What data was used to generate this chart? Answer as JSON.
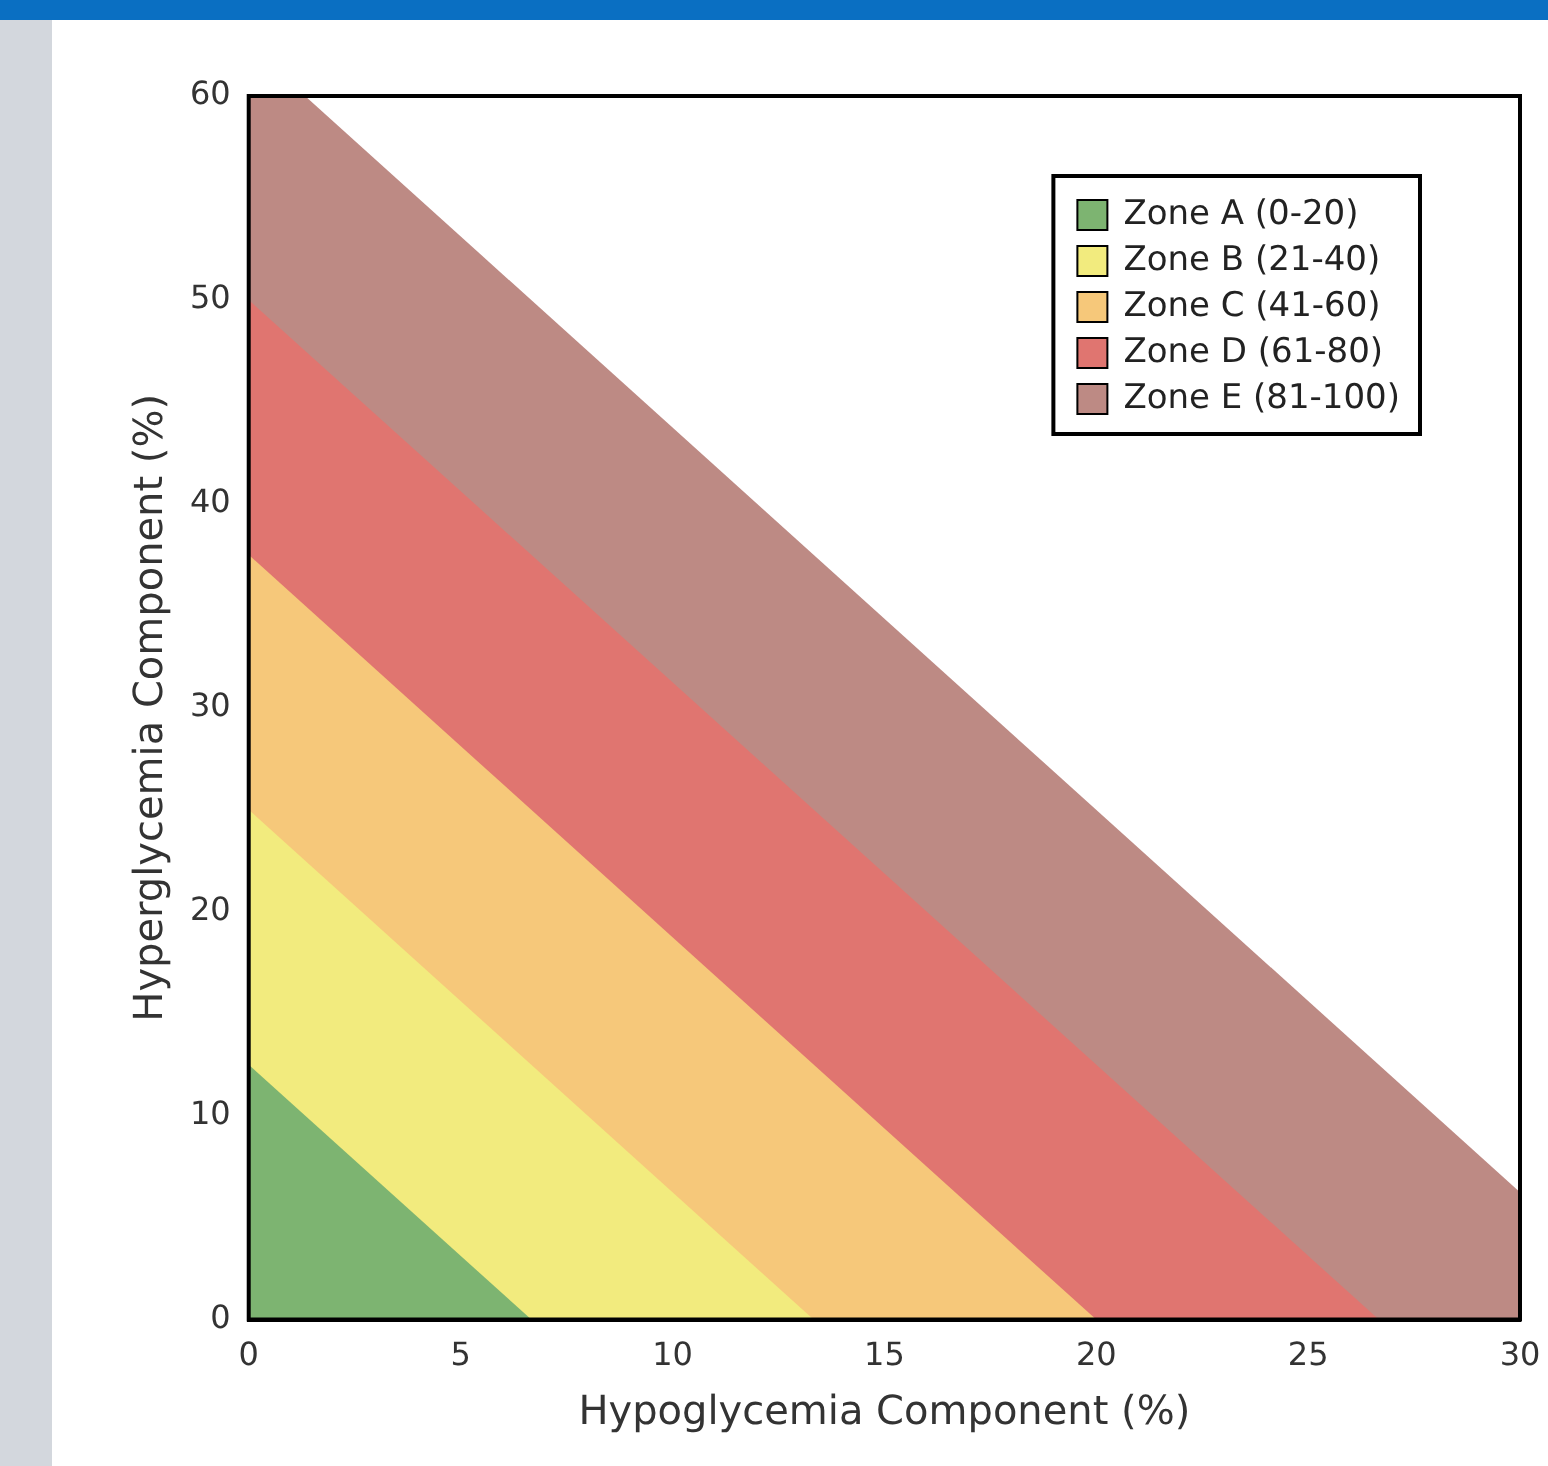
{
  "chart_data": {
    "type": "area",
    "xlabel": "Hypoglycemia Component (%)",
    "ylabel": "Hyperglycemia Component (%)",
    "xlim": [
      0,
      30
    ],
    "ylim": [
      0,
      60
    ],
    "xticks": [
      0,
      5,
      10,
      15,
      20,
      25,
      30
    ],
    "yticks": [
      0,
      10,
      20,
      30,
      40,
      50,
      60
    ],
    "legend": "top right",
    "marker": "none",
    "series": [
      {
        "name": "Zone A (0-20)",
        "color": "#7db471",
        "x": [
          0,
          6.67
        ],
        "values": [
          12.5,
          0
        ]
      },
      {
        "name": "Zone B (21-40)",
        "color": "#f2eb7e",
        "x": [
          0,
          13.33
        ],
        "values": [
          25,
          0
        ]
      },
      {
        "name": "Zone C (41-60)",
        "color": "#f6c87a",
        "x": [
          0,
          20
        ],
        "values": [
          37.5,
          0
        ]
      },
      {
        "name": "Zone D (61-80)",
        "color": "#e07570",
        "x": [
          0,
          26.67
        ],
        "values": [
          50,
          0
        ]
      },
      {
        "name": "Zone E (81-100)",
        "color": "#bd8a84",
        "x": [
          0,
          1.33,
          30
        ],
        "values": [
          60,
          60,
          6.25
        ]
      }
    ]
  }
}
